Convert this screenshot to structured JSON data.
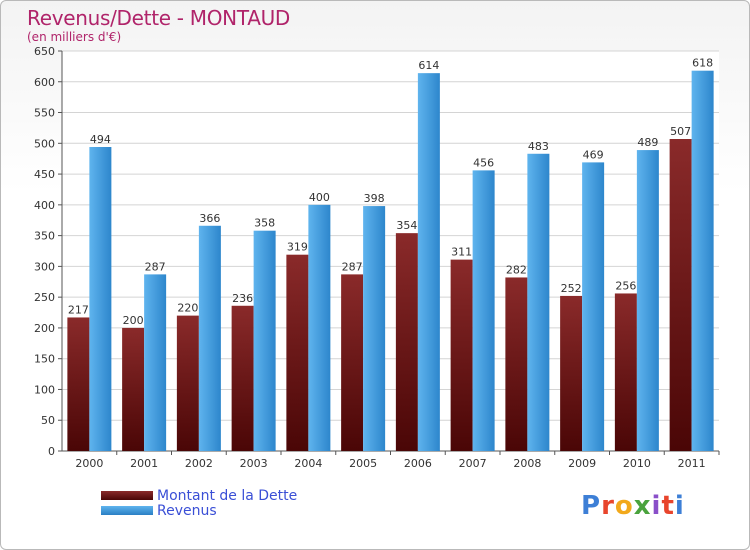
{
  "title": "Revenus/Dette - MONTAUD",
  "subtitle": "(en milliers d'€)",
  "colors": {
    "dette": "#7a1c1c",
    "revenus": "#3d9be0",
    "title": "#b0246a",
    "legend_text": "#3a4fd6"
  },
  "chart_data": {
    "type": "bar",
    "title": "Revenus/Dette - MONTAUD",
    "ylabel": "(en milliers d'€)",
    "categories": [
      "2000",
      "2001",
      "2002",
      "2003",
      "2004",
      "2005",
      "2006",
      "2007",
      "2008",
      "2009",
      "2010",
      "2011"
    ],
    "series": [
      {
        "name": "Montant de la Dette",
        "values": [
          217,
          200,
          220,
          236,
          319,
          287,
          354,
          311,
          282,
          252,
          256,
          507
        ]
      },
      {
        "name": "Revenus",
        "values": [
          494,
          287,
          366,
          358,
          400,
          398,
          614,
          456,
          483,
          469,
          489,
          618
        ]
      }
    ],
    "ylim": [
      0,
      650
    ],
    "yticks": [
      0,
      50,
      100,
      150,
      200,
      250,
      300,
      350,
      400,
      450,
      500,
      550,
      600,
      650
    ],
    "grid": true,
    "legend": "bottom-left"
  },
  "legend": {
    "dette_label": "Montant de la Dette",
    "revenus_label": "Revenus"
  },
  "logo": {
    "icon": "proxiti-logo",
    "text": "Proxiti"
  }
}
